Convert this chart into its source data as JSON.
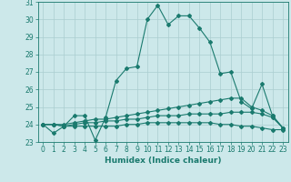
{
  "xlabel": "Humidex (Indice chaleur)",
  "x": [
    0,
    1,
    2,
    3,
    4,
    5,
    6,
    7,
    8,
    9,
    10,
    11,
    12,
    13,
    14,
    15,
    16,
    17,
    18,
    19,
    20,
    21,
    22,
    23
  ],
  "lines": [
    [
      24.0,
      23.5,
      23.9,
      24.5,
      24.5,
      23.1,
      24.4,
      26.5,
      27.2,
      27.3,
      30.0,
      30.8,
      29.7,
      30.2,
      30.2,
      29.5,
      28.7,
      26.9,
      27.0,
      25.3,
      24.9,
      26.3,
      24.5,
      23.8
    ],
    [
      24.0,
      24.0,
      24.0,
      24.1,
      24.2,
      24.3,
      24.3,
      24.4,
      24.5,
      24.6,
      24.7,
      24.8,
      24.9,
      25.0,
      25.1,
      25.2,
      25.3,
      25.4,
      25.5,
      25.5,
      25.0,
      24.8,
      24.5,
      23.8
    ],
    [
      24.0,
      24.0,
      23.9,
      23.9,
      23.9,
      23.9,
      23.9,
      23.9,
      24.0,
      24.0,
      24.1,
      24.1,
      24.1,
      24.1,
      24.1,
      24.1,
      24.1,
      24.0,
      24.0,
      23.9,
      23.9,
      23.8,
      23.7,
      23.7
    ],
    [
      24.0,
      24.0,
      23.9,
      24.0,
      24.1,
      24.1,
      24.2,
      24.2,
      24.3,
      24.3,
      24.4,
      24.5,
      24.5,
      24.5,
      24.6,
      24.6,
      24.6,
      24.6,
      24.7,
      24.7,
      24.7,
      24.6,
      24.4,
      23.8
    ]
  ],
  "line_color": "#1a7a6e",
  "marker": "D",
  "markersize": 2,
  "linewidth": 0.8,
  "bg_color": "#cce8ea",
  "grid_color": "#aacdd0",
  "ylim": [
    23,
    31
  ],
  "yticks": [
    23,
    24,
    25,
    26,
    27,
    28,
    29,
    30,
    31
  ],
  "xlim": [
    -0.5,
    23.5
  ],
  "xticks": [
    0,
    1,
    2,
    3,
    4,
    5,
    6,
    7,
    8,
    9,
    10,
    11,
    12,
    13,
    14,
    15,
    16,
    17,
    18,
    19,
    20,
    21,
    22,
    23
  ],
  "tick_fontsize": 5.5,
  "label_fontsize": 6.5
}
